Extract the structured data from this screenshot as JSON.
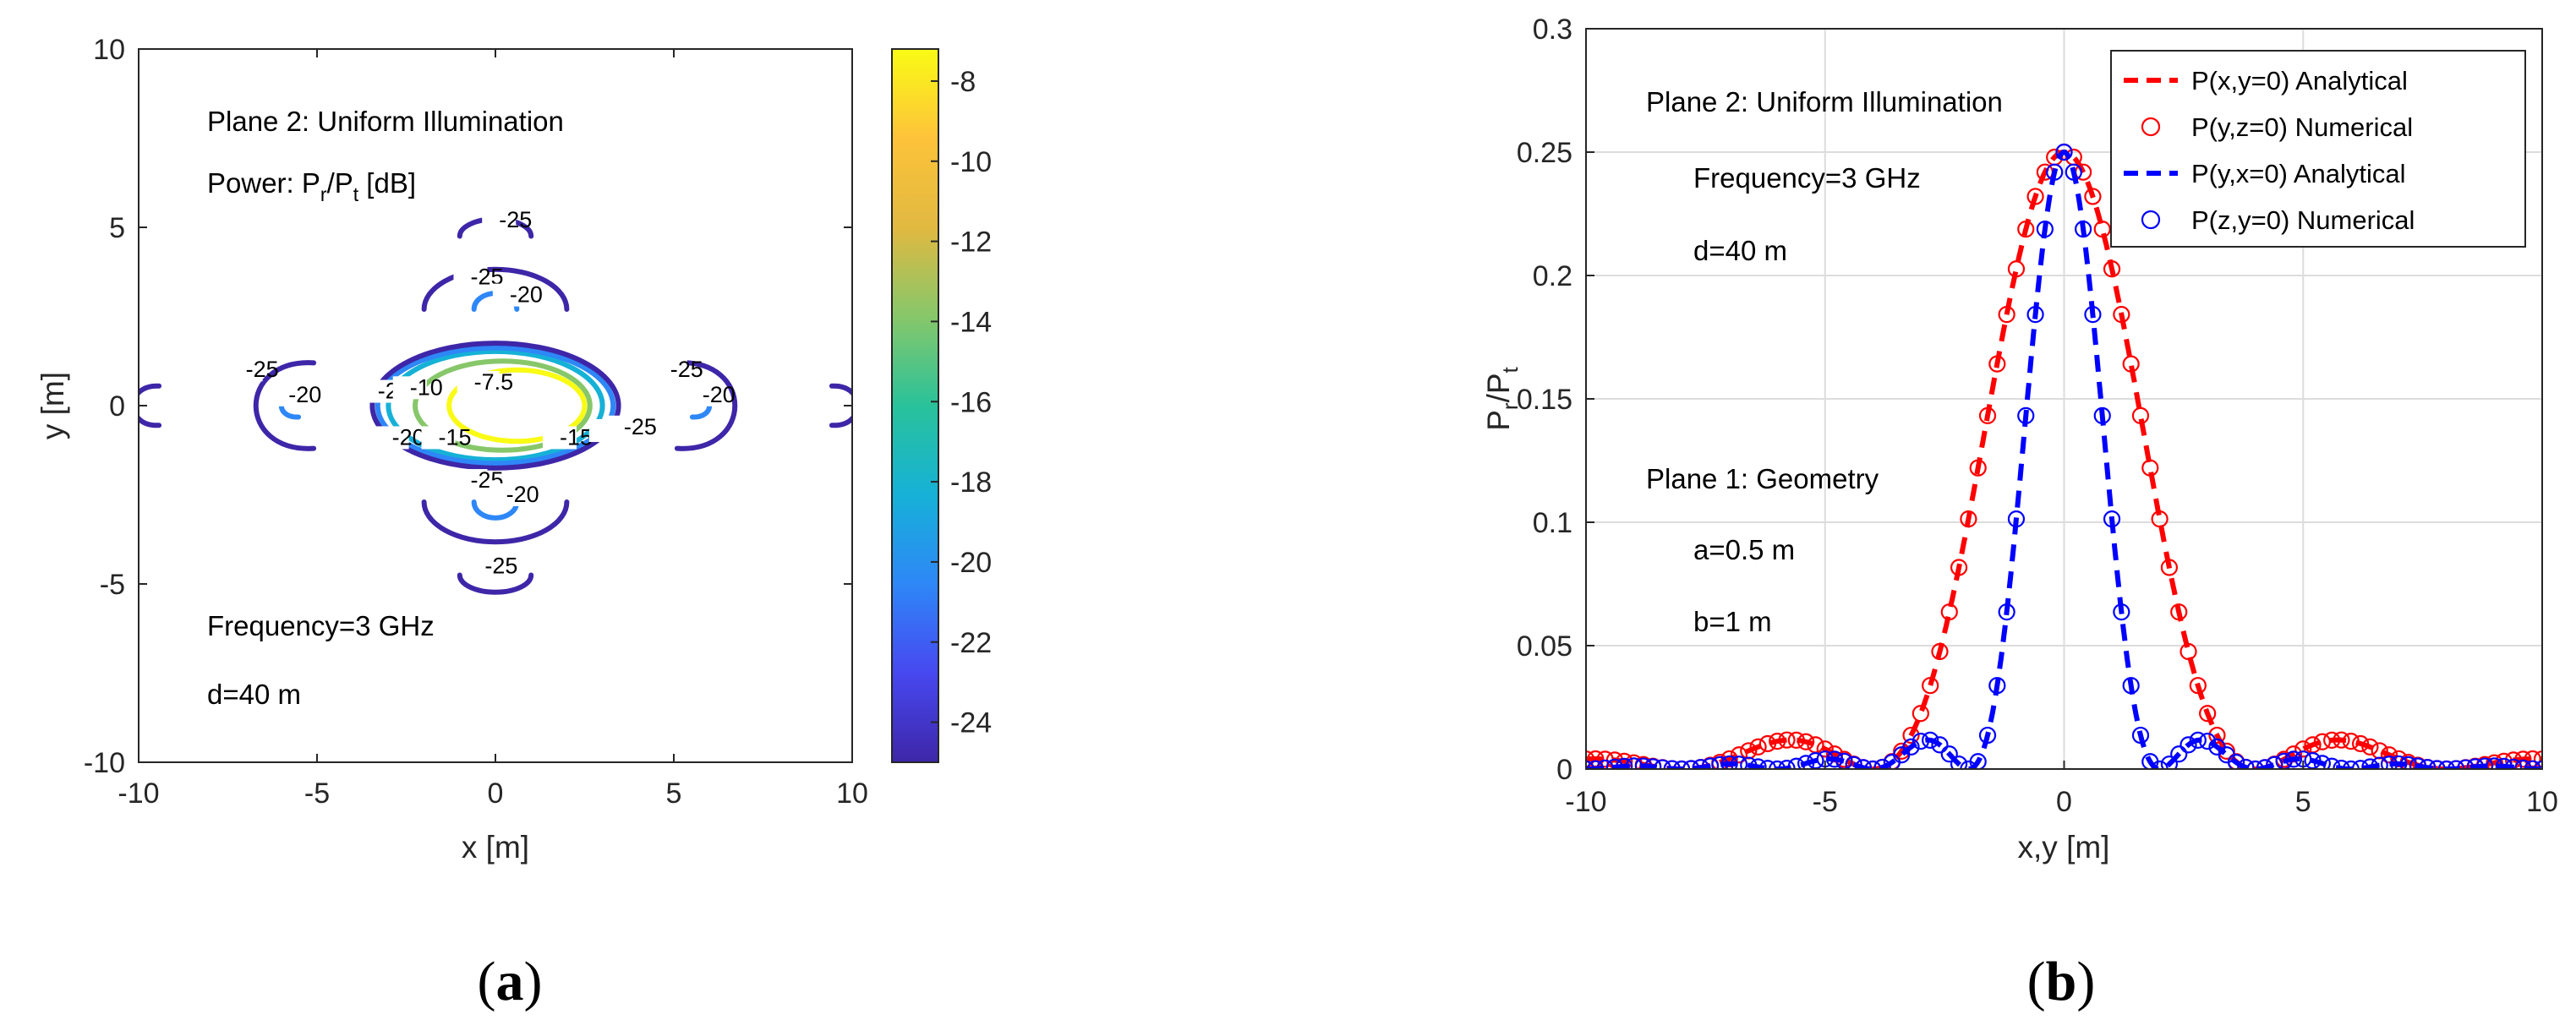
{
  "chart_data": [
    {
      "type": "contour",
      "panel_label": "a",
      "xlabel": "x [m]",
      "ylabel": "y [m]",
      "xlim": [
        -10,
        10
      ],
      "ylim": [
        -10,
        10
      ],
      "xticks": [
        "-10",
        "-5",
        "0",
        "5",
        "10"
      ],
      "yticks": [
        "-10",
        "-5",
        "0",
        "5",
        "10"
      ],
      "grid": false,
      "annotations": {
        "plane": "Plane 2: Uniform Illumination",
        "power_prefix": "Power: P",
        "power_sub1": "r",
        "power_mid": "/P",
        "power_sub2": "t",
        "power_suffix": " [dB]",
        "frequency": "Frequency=3 GHz",
        "distance": "d=40 m"
      },
      "colorbar": {
        "range": [
          -25,
          -7.2
        ],
        "ticks": [
          "-8",
          "-10",
          "-12",
          "-14",
          "-16",
          "-18",
          "-20",
          "-22",
          "-24"
        ],
        "colormap": [
          "#3e26a8",
          "#4748f0",
          "#2e87f7",
          "#16b1d7",
          "#29c29a",
          "#87c76a",
          "#e1b941",
          "#fdc33a",
          "#f9fb15"
        ]
      },
      "contour_levels": [
        -25,
        -20,
        -15,
        -10,
        -7.5
      ],
      "contour_colors": {
        "-25": "#3e26a8",
        "-20": "#2e87f7",
        "-15": "#16b1d7",
        "-10": "#87c76a",
        "-7.5": "#f9fb15"
      },
      "contours": [
        {
          "level": -7.5,
          "label": "-7.5",
          "shape": "ellipse",
          "center": [
            0.6,
            0
          ],
          "rx": 1.9,
          "ry": 1.0
        },
        {
          "level": -10,
          "label": "-10",
          "shape": "ellipse",
          "center": [
            0.2,
            0
          ],
          "rx": 2.45,
          "ry": 1.25
        },
        {
          "level": -15,
          "label": "-15",
          "shape": "ellipse",
          "center": [
            0,
            0
          ],
          "rx": 3.0,
          "ry": 1.52
        },
        {
          "level": -20,
          "label": "-20",
          "shape": "ellipse",
          "center": [
            0,
            0
          ],
          "rx": 3.3,
          "ry": 1.62
        },
        {
          "level": -25,
          "label": "-25",
          "shape": "ellipse",
          "center": [
            0,
            0
          ],
          "rx": 3.45,
          "ry": 1.75
        },
        {
          "level": -25,
          "label": "-25",
          "shape": "arc-up",
          "center": [
            0,
            2.7
          ],
          "rx": 2.0,
          "ry": 0.7
        },
        {
          "level": -20,
          "label": "-20",
          "shape": "arc-up",
          "center": [
            0,
            2.7
          ],
          "rx": 0.6,
          "ry": 0.28
        },
        {
          "level": -25,
          "label": "-25",
          "shape": "arc-down",
          "center": [
            0,
            -2.7
          ],
          "rx": 2.0,
          "ry": 0.7
        },
        {
          "level": -20,
          "label": "-20",
          "shape": "arc-down",
          "center": [
            0,
            -2.7
          ],
          "rx": 0.6,
          "ry": 0.28
        },
        {
          "level": -25,
          "label": "-25",
          "shape": "arc-up",
          "center": [
            0,
            4.75
          ],
          "rx": 1.0,
          "ry": 0.3
        },
        {
          "level": -25,
          "label": "-25",
          "shape": "arc-down",
          "center": [
            0,
            -4.75
          ],
          "rx": 1.0,
          "ry": 0.3
        },
        {
          "level": -25,
          "label": "-25",
          "shape": "arc-left",
          "center": [
            -5.7,
            0
          ],
          "rx": 1.35,
          "ry": 1.2
        },
        {
          "level": -20,
          "label": "-20",
          "shape": "arc-left",
          "center": [
            -5.7,
            0
          ],
          "rx": 0.4,
          "ry": 0.32
        },
        {
          "level": -25,
          "label": "-25",
          "shape": "arc-right",
          "center": [
            5.7,
            0
          ],
          "rx": 1.35,
          "ry": 1.2
        },
        {
          "level": -20,
          "label": "-20",
          "shape": "arc-right",
          "center": [
            5.7,
            0
          ],
          "rx": 0.4,
          "ry": 0.32
        },
        {
          "level": -25,
          "label": "",
          "shape": "arc-left",
          "center": [
            -9.7,
            0
          ],
          "rx": 0.6,
          "ry": 0.55
        },
        {
          "level": -25,
          "label": "",
          "shape": "arc-right",
          "center": [
            9.7,
            0
          ],
          "rx": 0.6,
          "ry": 0.55
        }
      ],
      "contour_label_positions": [
        {
          "text": "-25",
          "at": [
            0.1,
            5.0
          ]
        },
        {
          "text": "-25",
          "at": [
            -0.7,
            3.4
          ]
        },
        {
          "text": "-20",
          "at": [
            0.4,
            2.9
          ]
        },
        {
          "text": "-25",
          "at": [
            -7.0,
            0.8
          ]
        },
        {
          "text": "-20",
          "at": [
            -5.8,
            0.1
          ]
        },
        {
          "text": "-25",
          "at": [
            -3.3,
            0.2
          ]
        },
        {
          "text": "-10",
          "at": [
            -2.4,
            0.3
          ]
        },
        {
          "text": "-7.5",
          "at": [
            -0.6,
            0.45
          ]
        },
        {
          "text": "-20",
          "at": [
            -2.9,
            -1.1
          ]
        },
        {
          "text": "-15",
          "at": [
            -1.6,
            -1.1
          ]
        },
        {
          "text": "-15",
          "at": [
            1.8,
            -1.1
          ]
        },
        {
          "text": "-20",
          "at": [
            3.1,
            -0.9
          ]
        },
        {
          "text": "-25",
          "at": [
            3.6,
            -0.8
          ]
        },
        {
          "text": "-25",
          "at": [
            4.9,
            0.8
          ]
        },
        {
          "text": "-20",
          "at": [
            5.8,
            0.1
          ]
        },
        {
          "text": "-25",
          "at": [
            -0.7,
            -2.3
          ]
        },
        {
          "text": "-20",
          "at": [
            0.3,
            -2.7
          ]
        },
        {
          "text": "-25",
          "at": [
            -0.3,
            -4.7
          ]
        }
      ]
    },
    {
      "type": "line",
      "panel_label": "b",
      "xlabel": "x,y [m]",
      "ylabel_main": "P",
      "ylabel_sub1": "r",
      "ylabel_mid": "/P",
      "ylabel_sub2": "t",
      "xlim": [
        -10,
        10
      ],
      "ylim": [
        0,
        0.3
      ],
      "xticks": [
        "-10",
        "-5",
        "0",
        "5",
        "10"
      ],
      "yticks": [
        "0",
        "0.05",
        "0.1",
        "0.15",
        "0.2",
        "0.25",
        "0.3"
      ],
      "grid": true,
      "legend_position": "top-right",
      "annotations": {
        "plane2": "Plane 2: Uniform Illumination",
        "frequency": "Frequency=3 GHz",
        "distance": "d=40 m",
        "plane1": "Plane 1: Geometry",
        "a": "a=0.5 m",
        "b": "b=1 m"
      },
      "model": "sinc2",
      "series": [
        {
          "name": "P(x,y=0) Analytical",
          "color": "#ff0000",
          "style": "dashed",
          "peak": 0.25,
          "first_null": 4.0
        },
        {
          "name": "P(y,z=0) Numerical",
          "color": "#ff0000",
          "style": "circles",
          "peak": 0.25,
          "first_null": 4.0
        },
        {
          "name": "P(y,x=0) Analytical",
          "color": "#0000ff",
          "style": "dashed",
          "peak": 0.25,
          "first_null": 2.0
        },
        {
          "name": "P(z,y=0) Numerical",
          "color": "#0000ff",
          "style": "circles",
          "peak": 0.25,
          "first_null": 2.0
        }
      ],
      "marker_spacing": 0.2
    }
  ],
  "captions": {
    "a_open": "(",
    "a_letter": "a",
    "a_close": ")",
    "b_open": "(",
    "b_letter": "b",
    "b_close": ")"
  }
}
